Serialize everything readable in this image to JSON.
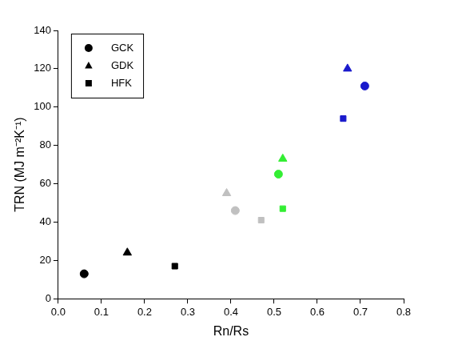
{
  "chart_data": {
    "type": "scatter",
    "x_label": "Rn/Rs",
    "y_label": "TRN (MJ m⁻²K⁻¹)",
    "xlim": [
      0,
      0.8
    ],
    "xticks": [
      {
        "value": 0,
        "label": "0.0"
      },
      {
        "value": 0.1,
        "label": "0.1"
      },
      {
        "value": 0.2,
        "label": "0.2"
      },
      {
        "value": 0.3,
        "label": "0.3"
      },
      {
        "value": 0.4,
        "label": "0.4"
      },
      {
        "value": 0.5,
        "label": "0.5"
      },
      {
        "value": 0.6,
        "label": "0.6"
      },
      {
        "value": 0.7,
        "label": "0.7"
      },
      {
        "value": 0.8,
        "label": "0.8"
      }
    ],
    "ylim": [
      0,
      140
    ],
    "yticks": [
      0,
      20,
      40,
      60,
      80,
      100,
      120,
      140
    ],
    "grid": false,
    "legend": "upper left",
    "series": [
      {
        "name": "GCK",
        "marker": "circle",
        "color": "#000000",
        "x": [
          0.06,
          0.41,
          0.51,
          0.71
        ],
        "values": [
          13,
          46,
          65,
          111
        ],
        "colors": [
          "#000000",
          "#c0c0c0",
          "#33ee33",
          "#1a1acc"
        ]
      },
      {
        "name": "GDK",
        "marker": "triangle",
        "color": "#000000",
        "x": [
          0.16,
          0.39,
          0.52,
          0.67
        ],
        "values": [
          24,
          55,
          73,
          120
        ],
        "colors": [
          "#000000",
          "#c0c0c0",
          "#33ee33",
          "#1a1acc"
        ]
      },
      {
        "name": "HFK",
        "marker": "square",
        "color": "#000000",
        "x": [
          0.27,
          0.47,
          0.52,
          0.66
        ],
        "values": [
          17,
          41,
          47,
          94
        ],
        "colors": [
          "#000000",
          "#c0c0c0",
          "#33ee33",
          "#1a1acc"
        ]
      }
    ]
  }
}
